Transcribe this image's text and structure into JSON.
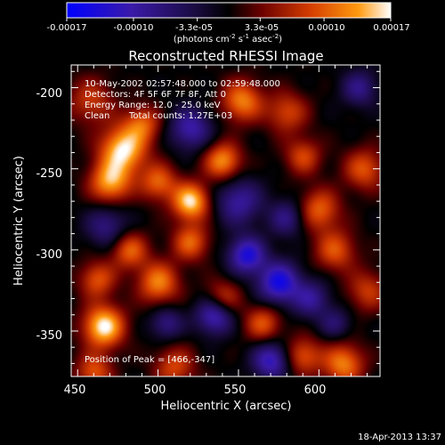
{
  "chart_data": {
    "type": "heatmap",
    "title": "Reconstructed RHESSI Image",
    "xlabel": "Heliocentric X (arcsec)",
    "ylabel": "Heliocentric Y (arcsec)",
    "xlim": [
      446,
      638
    ],
    "ylim": [
      -378,
      -186
    ],
    "x_ticks": [
      450,
      500,
      550,
      600
    ],
    "y_ticks": [
      -200,
      -250,
      -300,
      -350
    ],
    "colorbar": {
      "range": [
        -0.00017,
        0.00017
      ],
      "tick_labels": [
        "-0.00017",
        "-0.00010",
        "-3.3e-05",
        "3.3e-05",
        "0.00010",
        "0.00017"
      ],
      "unit_text": "(photons cm",
      "unit_sup1": "-2",
      "unit_mid": " s",
      "unit_sup2": "-1",
      "unit_mid2": " asec",
      "unit_sup3": "-2",
      "unit_end": ")",
      "colors": [
        "#0000ff",
        "#3a1aa8",
        "#1a0b40",
        "#000000",
        "#6b0000",
        "#d43c00",
        "#ff9a10",
        "#ffffff"
      ]
    },
    "annotations": {
      "time_range": "10-May-2002 02:57:48.000 to 02:59:48.000",
      "detectors": "Detectors: 4F 5F 6F 7F 8F, Att 0",
      "energy": "Energy Range: 12.0 - 25.0 keV",
      "clean_label": "Clean",
      "total_counts": "Total counts: 1.27E+03",
      "peak": "Position of Peak = [466,-347]"
    },
    "timestamp": "18-Apr-2013 13:37",
    "blobs": [
      {
        "x": 466,
        "y": -347,
        "amp": 1.0,
        "s": 9
      },
      {
        "x": 478,
        "y": -238,
        "amp": 0.95,
        "s": 10
      },
      {
        "x": 470,
        "y": -258,
        "amp": 0.8,
        "s": 9
      },
      {
        "x": 458,
        "y": -208,
        "amp": 0.45,
        "s": 10
      },
      {
        "x": 490,
        "y": -222,
        "amp": 0.55,
        "s": 8
      },
      {
        "x": 520,
        "y": -270,
        "amp": 0.95,
        "s": 8
      },
      {
        "x": 500,
        "y": -258,
        "amp": 0.6,
        "s": 8
      },
      {
        "x": 540,
        "y": -245,
        "amp": 0.75,
        "s": 8
      },
      {
        "x": 552,
        "y": -208,
        "amp": 0.7,
        "s": 9
      },
      {
        "x": 580,
        "y": -215,
        "amp": 0.5,
        "s": 9
      },
      {
        "x": 600,
        "y": -275,
        "amp": 0.6,
        "s": 9
      },
      {
        "x": 610,
        "y": -300,
        "amp": 0.55,
        "s": 9
      },
      {
        "x": 590,
        "y": -242,
        "amp": 0.5,
        "s": 8
      },
      {
        "x": 628,
        "y": -250,
        "amp": 0.55,
        "s": 9
      },
      {
        "x": 630,
        "y": -325,
        "amp": 0.45,
        "s": 9
      },
      {
        "x": 500,
        "y": -320,
        "amp": 0.7,
        "s": 9
      },
      {
        "x": 520,
        "y": -295,
        "amp": 0.6,
        "s": 8
      },
      {
        "x": 482,
        "y": -300,
        "amp": 0.6,
        "s": 8
      },
      {
        "x": 462,
        "y": -318,
        "amp": 0.55,
        "s": 8
      },
      {
        "x": 540,
        "y": -330,
        "amp": 0.5,
        "s": 8
      },
      {
        "x": 565,
        "y": -345,
        "amp": 0.55,
        "s": 8
      },
      {
        "x": 590,
        "y": -365,
        "amp": 0.55,
        "s": 8
      },
      {
        "x": 615,
        "y": -370,
        "amp": 0.7,
        "s": 9
      },
      {
        "x": 510,
        "y": -372,
        "amp": 0.5,
        "s": 9
      },
      {
        "x": 460,
        "y": -375,
        "amp": 0.55,
        "s": 8
      },
      {
        "x": 520,
        "y": -225,
        "amp": -0.6,
        "s": 9
      },
      {
        "x": 550,
        "y": -270,
        "amp": -0.55,
        "s": 10
      },
      {
        "x": 468,
        "y": -285,
        "amp": -0.45,
        "s": 9
      },
      {
        "x": 575,
        "y": -320,
        "amp": -0.85,
        "s": 9
      },
      {
        "x": 555,
        "y": -303,
        "amp": -0.8,
        "s": 8
      },
      {
        "x": 535,
        "y": -340,
        "amp": -0.75,
        "s": 8
      },
      {
        "x": 570,
        "y": -368,
        "amp": -0.7,
        "s": 8
      },
      {
        "x": 595,
        "y": -330,
        "amp": -0.5,
        "s": 8
      },
      {
        "x": 505,
        "y": -345,
        "amp": -0.45,
        "s": 7
      },
      {
        "x": 580,
        "y": -280,
        "amp": -0.45,
        "s": 8
      },
      {
        "x": 625,
        "y": -200,
        "amp": -0.45,
        "s": 8
      },
      {
        "x": 610,
        "y": -345,
        "amp": -0.35,
        "s": 7
      }
    ]
  }
}
